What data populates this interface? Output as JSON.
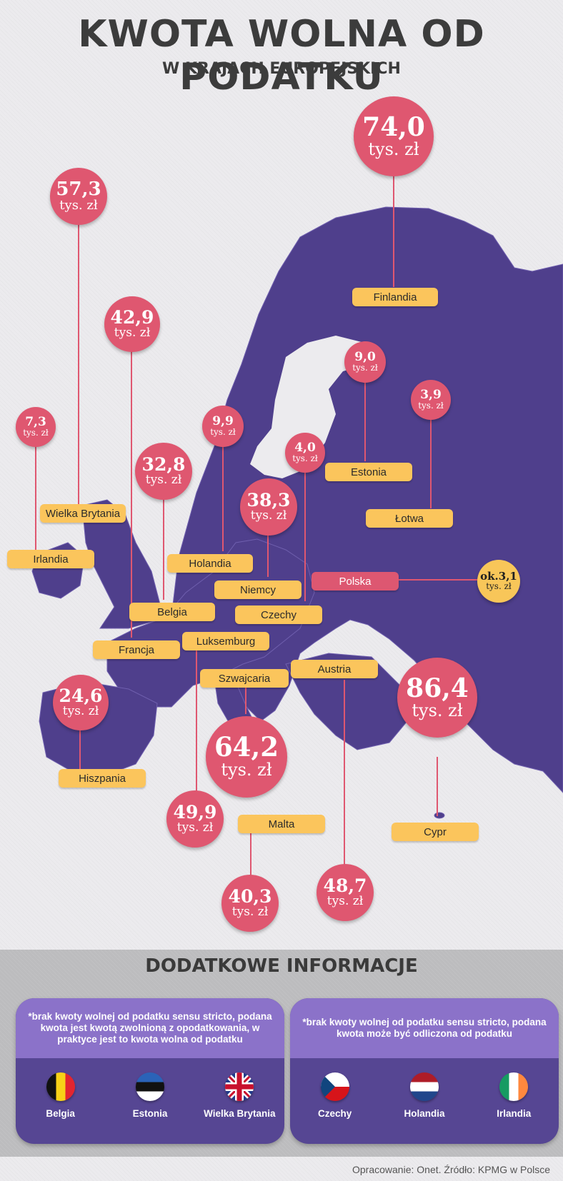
{
  "header": {
    "title": "KWOTA WOLNA OD PODATKU",
    "subtitle": "W KRAJACH EUROPEJSKICH"
  },
  "colors": {
    "land": "#4f3f8c",
    "bubble": "#df5770",
    "label": "#fbc55c",
    "header_band": "#8b72c9"
  },
  "map": {
    "countries": [
      {
        "name": "Finlandia",
        "value": "74,0",
        "unit": "tys. zł"
      },
      {
        "name": "Wielka Brytania",
        "value": "57,3",
        "unit": "tys. zł"
      },
      {
        "name": "Francja",
        "value": "42,9",
        "unit": "tys. zł"
      },
      {
        "name": "Irlandia",
        "value": "7,3",
        "unit": "tys. zł"
      },
      {
        "name": "Holandia",
        "value": "9,9",
        "unit": "tys. zł"
      },
      {
        "name": "Belgia",
        "value": "32,8",
        "unit": "tys. zł"
      },
      {
        "name": "Estonia",
        "value": "9,0",
        "unit": "tys. zł"
      },
      {
        "name": "Łotwa",
        "value": "3,9",
        "unit": "tys. zł"
      },
      {
        "name": "Czechy",
        "value": "4,0",
        "unit": "tys. zł"
      },
      {
        "name": "Niemcy",
        "value": "38,3",
        "unit": "tys. zł"
      },
      {
        "name": "Polska",
        "value": "ok.3,1",
        "unit": "tys. zł"
      },
      {
        "name": "Hiszpania",
        "value": "24,6",
        "unit": "tys. zł"
      },
      {
        "name": "Szwajcaria",
        "value": "64,2",
        "unit": "tys. zł"
      },
      {
        "name": "Luksemburg",
        "value": "49,9",
        "unit": "tys. zł"
      },
      {
        "name": "Malta",
        "value": "40,3",
        "unit": "tys. zł"
      },
      {
        "name": "Austria",
        "value": "48,7",
        "unit": "tys. zł"
      },
      {
        "name": "Cypr",
        "value": "86,4",
        "unit": "tys. zł"
      }
    ]
  },
  "info": {
    "title": "DODATKOWE INFORMACJE",
    "left": {
      "note": "*brak kwoty wolnej od podatku sensu stricto, podana kwota jest kwotą zwolnioną z opodatkowania, w praktyce jest to kwota wolna od podatku",
      "countries": [
        "Belgia",
        "Estonia",
        "Wielka Brytania"
      ],
      "flag_icons": [
        "belgium-flag-icon",
        "estonia-flag-icon",
        "uk-flag-icon"
      ]
    },
    "right": {
      "note": "*brak kwoty wolnej od podatku sensu stricto, podana kwota może być odliczona od podatku",
      "countries": [
        "Czechy",
        "Holandia",
        "Irlandia"
      ],
      "flag_icons": [
        "czech-flag-icon",
        "netherlands-flag-icon",
        "ireland-flag-icon"
      ]
    }
  },
  "footer": {
    "source": "Opracowanie: Onet. Źródło: KPMG w Polsce"
  }
}
